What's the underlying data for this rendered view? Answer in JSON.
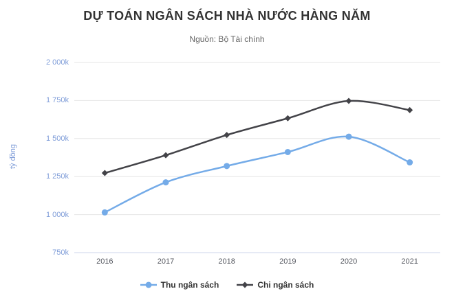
{
  "header": {
    "title": "DỰ TOÁN NGÂN SÁCH NHÀ NƯỚC HÀNG NĂM",
    "subtitle": "Nguồn: Bộ Tài chính"
  },
  "chart_data": {
    "type": "line",
    "interpolation": "spline",
    "categories": [
      "2016",
      "2017",
      "2018",
      "2019",
      "2020",
      "2021"
    ],
    "series": [
      {
        "name": "Thu ngân sách",
        "color": "#74abe8",
        "marker": "circle",
        "values": [
          1014.5,
          1212.2,
          1319.2,
          1411.3,
          1512.3,
          1343.3
        ]
      },
      {
        "name": "Chi ngân sách",
        "color": "#434348",
        "marker": "diamond",
        "values": [
          1273.2,
          1390.5,
          1523.2,
          1633.3,
          1747.1,
          1687.0
        ]
      }
    ],
    "value_suffix": "k",
    "ylabel": "tỷ đồng",
    "ylim": [
      750,
      2000
    ],
    "ytick_values": [
      2000,
      1750,
      1500,
      1250,
      1000,
      750
    ],
    "ytick_labels": [
      "2 000k",
      "1 750k",
      "1 500k",
      "1 250k",
      "1 000k",
      "750k"
    ],
    "grid": true,
    "legend_position": "bottom",
    "colors": {
      "title": "#333333",
      "subtitle": "#666666",
      "y_label": "#7e9cd8",
      "x_label": "#54575f",
      "legend_text": "#333333",
      "grid_line": "#e6e6e6",
      "axis_line": "#ccd6eb",
      "background": "#ffffff"
    }
  }
}
